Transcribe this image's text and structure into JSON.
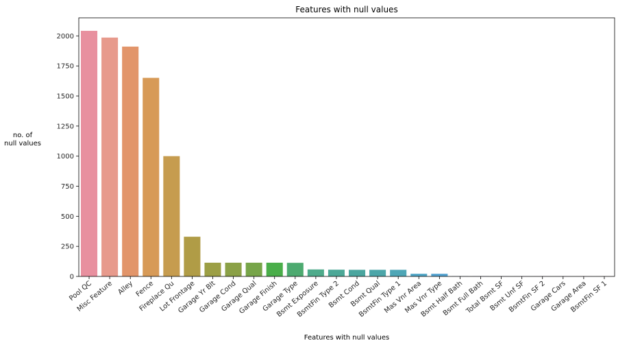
{
  "chart_data": {
    "type": "bar",
    "title": "Features with null values",
    "xlabel": "Features with null values",
    "ylabel_lines": [
      "no. of",
      "null values"
    ],
    "ylim": [
      0,
      2150
    ],
    "yticks": [
      0,
      250,
      500,
      750,
      1000,
      1250,
      1500,
      1750,
      2000
    ],
    "grid": false,
    "categories": [
      "Pool QC",
      "Misc Feature",
      "Alley",
      "Fence",
      "Fireplace Qu",
      "Lot Frontage",
      "Garage Yr Blt",
      "Garage Cond",
      "Garage Qual",
      "Garage Finish",
      "Garage Type",
      "Bsmt Exposure",
      "BsmtFin Type 2",
      "Bsmt Cond",
      "Bsmt Qual",
      "BsmtFin Type 1",
      "Mas Vnr Area",
      "Mas Vnr Type",
      "Bsmt Half Bath",
      "Bsmt Full Bath",
      "Total Bsmt SF",
      "Bsmt Unf SF",
      "BsmtFin SF 2",
      "Garage Cars",
      "Garage Area",
      "BsmtFin SF 1"
    ],
    "values": [
      2042,
      1986,
      1911,
      1651,
      1000,
      330,
      114,
      114,
      114,
      114,
      113,
      58,
      56,
      55,
      55,
      55,
      22,
      22,
      2,
      2,
      1,
      1,
      1,
      1,
      1,
      1
    ],
    "colors": [
      "#e8909f",
      "#e79a8c",
      "#e2956a",
      "#d79a57",
      "#c69c4f",
      "#b09c46",
      "#9c9f45",
      "#8ba147",
      "#77a549",
      "#4aae4a",
      "#4daa70",
      "#4eab8b",
      "#4ca897",
      "#4ba69f",
      "#4ca6a9",
      "#4ea6b6",
      "#50a6c6",
      "#55a3d1",
      "#7aa1d8",
      "#9a9be0",
      "#b596e4",
      "#c98fe5",
      "#d78be2",
      "#e088d5",
      "#e58cc3",
      "#e88fae"
    ]
  }
}
